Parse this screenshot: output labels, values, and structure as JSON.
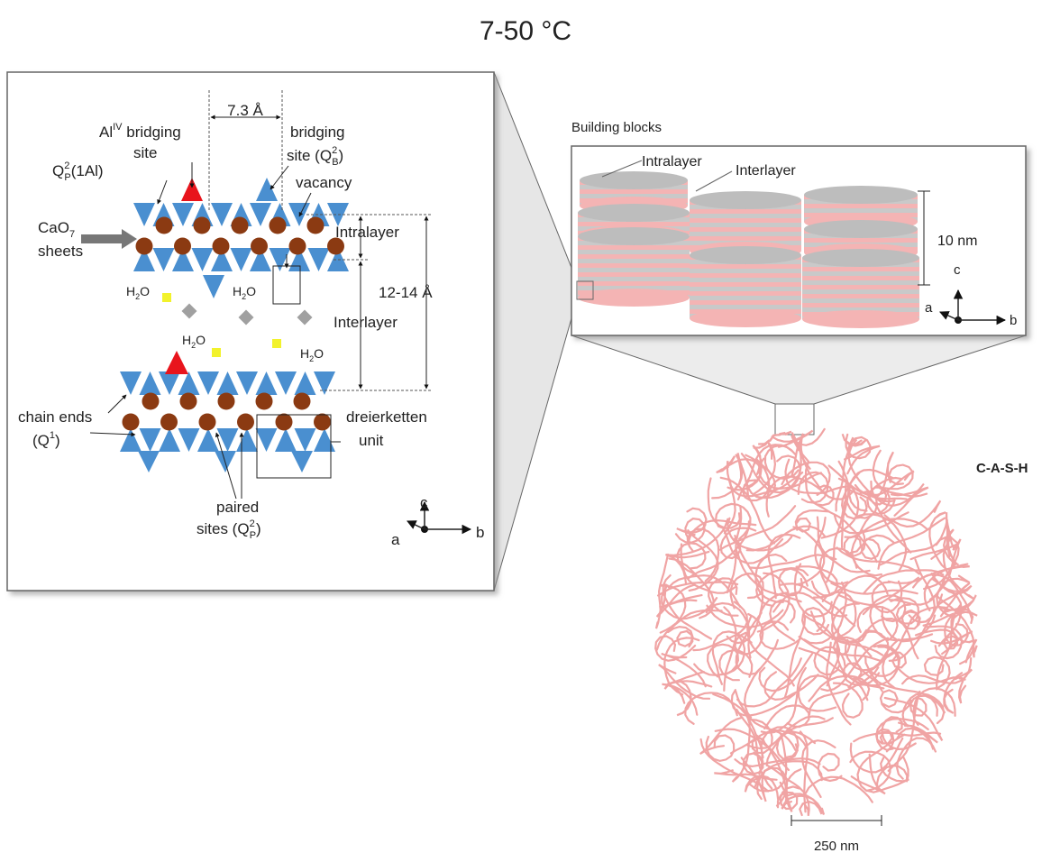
{
  "title": "7-50 °C",
  "left_panel": {
    "spacing": "7.3 Å",
    "al_site": [
      "Al",
      "IV",
      " bridging",
      "site"
    ],
    "bridging_site": [
      "bridging",
      "site (Q",
      "2",
      "B",
      ")"
    ],
    "q2p_1al": [
      "Q",
      "2",
      "P",
      "(1Al)"
    ],
    "vacancy": "vacancy",
    "cao7": [
      "CaO",
      "7",
      "sheets"
    ],
    "intralayer": "Intralayer",
    "interlayer": "Interlayer",
    "layer_spacing": "12-14 Å",
    "water": [
      [
        "H",
        "2",
        "O"
      ],
      [
        "H",
        "2",
        "O"
      ],
      [
        "H",
        "2",
        "O"
      ],
      [
        "H",
        "2",
        "O"
      ]
    ],
    "chain_ends": [
      "chain ends",
      "(Q",
      "1",
      ")"
    ],
    "dreierketten": [
      "dreierketten",
      "unit"
    ],
    "paired_sites": [
      "paired",
      "sites (Q",
      "2",
      "P",
      ")"
    ],
    "axes": [
      "c",
      "a",
      "b"
    ]
  },
  "building_blocks": {
    "title": "Building blocks",
    "intralayer": "Intralayer",
    "interlayer": "Interlayer",
    "scale": "10 nm",
    "axes": [
      "c",
      "a",
      "b"
    ]
  },
  "morphology": {
    "label": "C-A-S-H",
    "scale": "250 nm"
  }
}
